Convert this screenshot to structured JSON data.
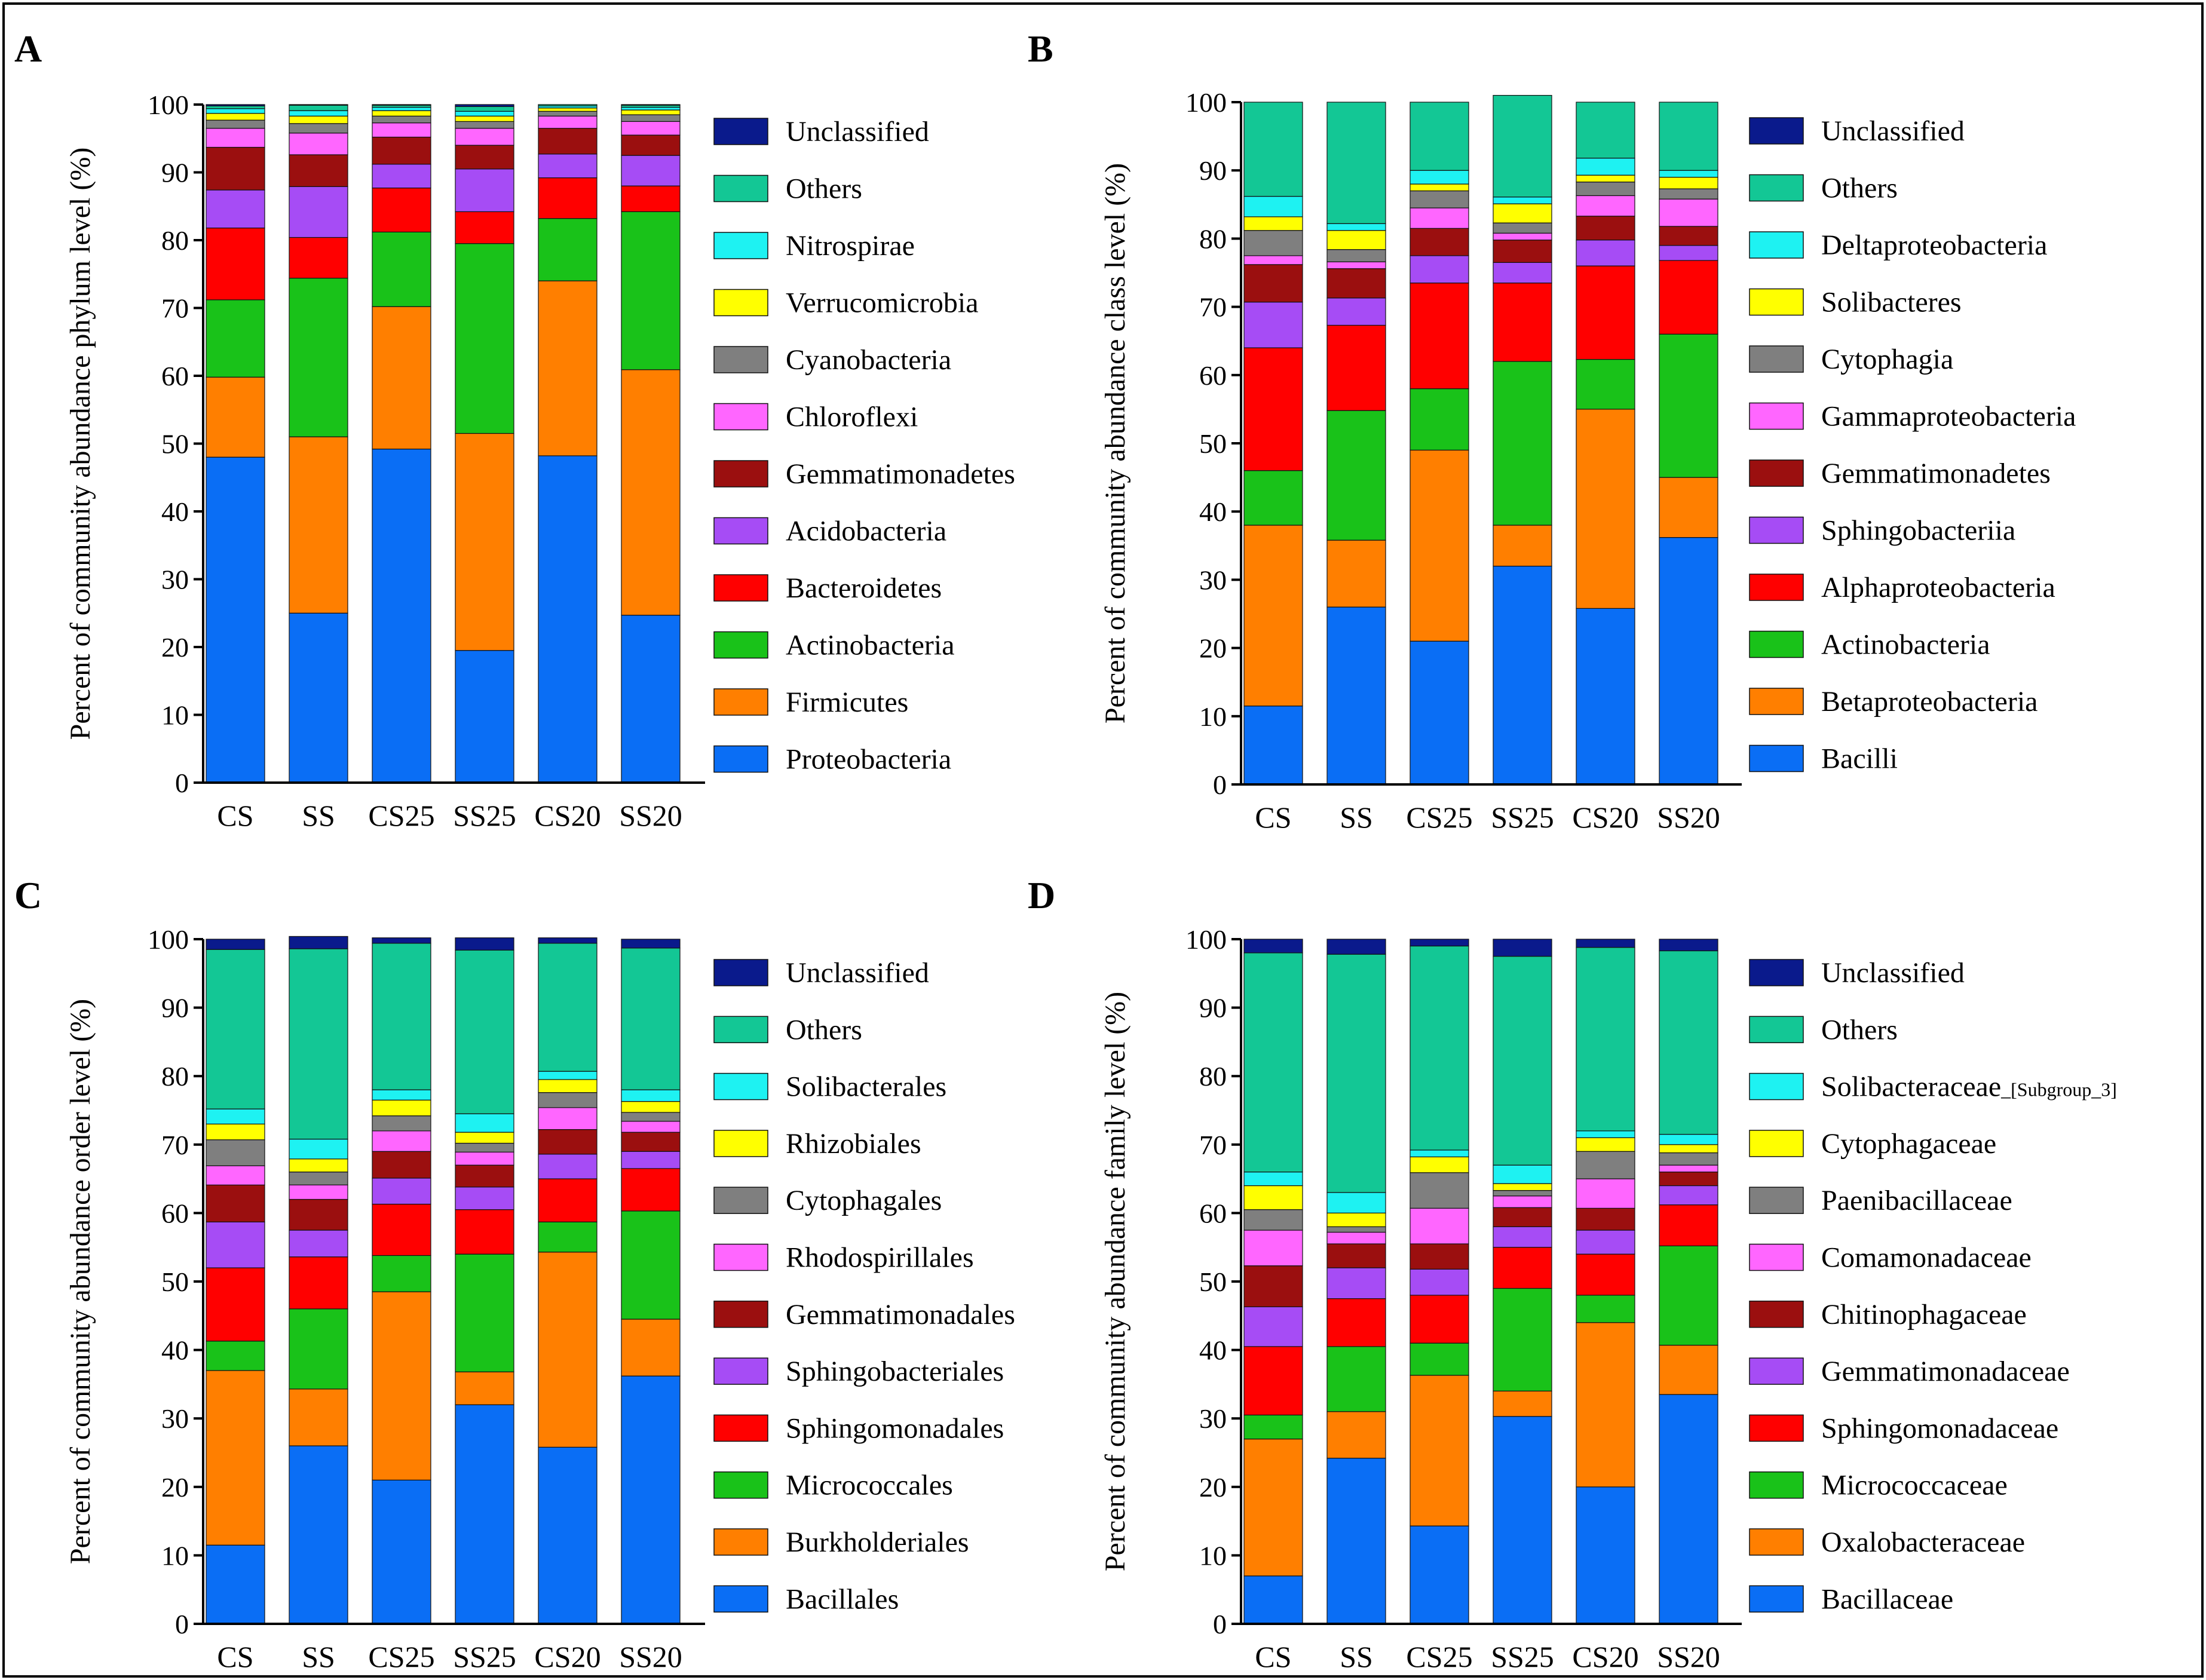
{
  "colors": {
    "Unclassified": "#0a1a8c",
    "Others": "#13c795",
    "Cyan": "#1ef2f2",
    "Yellow": "#ffff00",
    "Gray": "#7f7f7f",
    "Pink": "#ff66ff",
    "DarkRed": "#9b0f0f",
    "Purple": "#a64cf5",
    "Red": "#ff0000",
    "Green": "#19c219",
    "Orange": "#ff7f00",
    "Blue": "#0a6ef5"
  },
  "chart_data": [
    {
      "panel": "A",
      "type": "bar",
      "stacked": true,
      "title": "",
      "xlabel": "",
      "ylabel": "Percent of community abundance phylum level (%)",
      "ylim": [
        0,
        100
      ],
      "yticks": [
        "0",
        "10",
        "20",
        "30",
        "40",
        "50",
        "60",
        "70",
        "80",
        "90",
        "100"
      ],
      "categories": [
        "CS",
        "SS",
        "CS25",
        "SS25",
        "CS20",
        "SS20"
      ],
      "legend_position": "right",
      "series": [
        {
          "name": "Proteobacteria",
          "color_key": "Blue",
          "values": [
            48.0,
            25.0,
            49.2,
            19.5,
            48.2,
            24.7
          ]
        },
        {
          "name": "Firmicutes",
          "color_key": "Orange",
          "values": [
            11.8,
            26.0,
            21.0,
            32.0,
            25.8,
            36.2
          ]
        },
        {
          "name": "Actinobacteria",
          "color_key": "Green",
          "values": [
            11.4,
            23.4,
            11.0,
            28.0,
            9.2,
            23.3
          ]
        },
        {
          "name": "Bacteroidetes",
          "color_key": "Red",
          "values": [
            10.6,
            6.0,
            6.5,
            4.7,
            6.0,
            3.8
          ]
        },
        {
          "name": "Acidobacteria",
          "color_key": "Purple",
          "values": [
            5.6,
            7.5,
            3.5,
            6.3,
            3.5,
            4.5
          ]
        },
        {
          "name": "Gemmatimonadetes",
          "color_key": "DarkRed",
          "values": [
            6.3,
            4.7,
            4.0,
            3.5,
            3.8,
            3.0
          ]
        },
        {
          "name": "Chloroflexi",
          "color_key": "Pink",
          "values": [
            2.8,
            3.2,
            2.1,
            2.5,
            1.8,
            2.0
          ]
        },
        {
          "name": "Cyanobacteria",
          "color_key": "Gray",
          "values": [
            1.2,
            1.4,
            1.0,
            1.0,
            0.7,
            1.0
          ]
        },
        {
          "name": "Verrucomicrobia",
          "color_key": "Yellow",
          "values": [
            1.0,
            1.1,
            0.8,
            0.8,
            0.5,
            0.7
          ]
        },
        {
          "name": "Nitrospirae",
          "color_key": "Cyan",
          "values": [
            0.7,
            0.8,
            0.5,
            0.7,
            0.3,
            0.4
          ]
        },
        {
          "name": "Others",
          "color_key": "Others",
          "values": [
            0.4,
            0.8,
            0.3,
            0.7,
            0.2,
            0.3
          ]
        },
        {
          "name": "Unclassified",
          "color_key": "Unclassified",
          "values": [
            0.2,
            0.1,
            0.1,
            0.3,
            0.0,
            0.1
          ]
        }
      ]
    },
    {
      "panel": "B",
      "type": "bar",
      "stacked": true,
      "title": "",
      "xlabel": "",
      "ylabel": "Percent of community abundance class level (%)",
      "ylim": [
        0,
        100
      ],
      "yticks": [
        "0",
        "10",
        "20",
        "30",
        "40",
        "50",
        "60",
        "70",
        "80",
        "90",
        "100"
      ],
      "categories": [
        "CS",
        "SS",
        "CS25",
        "SS25",
        "CS20",
        "SS20"
      ],
      "legend_position": "right",
      "series": [
        {
          "name": "Bacilli",
          "color_key": "Blue",
          "values": [
            11.5,
            26.0,
            21.0,
            32.0,
            25.8,
            36.2
          ]
        },
        {
          "name": "Betaproteobacteria",
          "color_key": "Orange",
          "values": [
            26.5,
            9.8,
            28.0,
            6.0,
            29.2,
            8.8
          ]
        },
        {
          "name": "Actinobacteria",
          "color_key": "Green",
          "values": [
            8.0,
            19.0,
            9.0,
            24.0,
            7.3,
            21.0
          ]
        },
        {
          "name": "Alphaproteobacteria",
          "color_key": "Red",
          "values": [
            18.0,
            12.5,
            15.5,
            11.5,
            13.7,
            10.8
          ]
        },
        {
          "name": "Sphingobacteriia",
          "color_key": "Purple",
          "values": [
            6.7,
            4.0,
            4.0,
            3.0,
            3.8,
            2.2
          ]
        },
        {
          "name": "Gemmatimonadetes",
          "color_key": "DarkRed",
          "values": [
            5.5,
            4.3,
            4.0,
            3.3,
            3.5,
            2.8
          ]
        },
        {
          "name": "Gammaproteobacteria",
          "color_key": "Pink",
          "values": [
            1.3,
            1.0,
            3.0,
            1.0,
            3.0,
            4.0
          ]
        },
        {
          "name": "Cytophagia",
          "color_key": "Gray",
          "values": [
            3.7,
            1.8,
            2.5,
            1.5,
            2.0,
            1.5
          ]
        },
        {
          "name": "Solibacteres",
          "color_key": "Yellow",
          "values": [
            2.0,
            2.8,
            1.0,
            2.8,
            1.0,
            1.7
          ]
        },
        {
          "name": "Deltaproteobacteria",
          "color_key": "Cyan",
          "values": [
            3.0,
            1.0,
            2.0,
            1.0,
            2.5,
            1.0
          ]
        },
        {
          "name": "Others",
          "color_key": "Others",
          "values": [
            13.8,
            17.8,
            10.0,
            14.9,
            8.2,
            10.0
          ]
        },
        {
          "name": "Unclassified",
          "color_key": "Unclassified",
          "values": [
            0.0,
            0.0,
            0.0,
            0.0,
            0.0,
            0.0
          ]
        }
      ]
    },
    {
      "panel": "C",
      "type": "bar",
      "stacked": true,
      "title": "",
      "xlabel": "",
      "ylabel": "Percent of community abundance order level (%)",
      "ylim": [
        0,
        100
      ],
      "yticks": [
        "0",
        "10",
        "20",
        "30",
        "40",
        "50",
        "60",
        "70",
        "80",
        "90",
        "100"
      ],
      "categories": [
        "CS",
        "SS",
        "CS25",
        "SS25",
        "CS20",
        "SS20"
      ],
      "legend_position": "right",
      "series": [
        {
          "name": "Bacillales",
          "color_key": "Blue",
          "values": [
            11.5,
            26.0,
            21.0,
            32.0,
            25.8,
            36.2
          ]
        },
        {
          "name": "Burkholderiales",
          "color_key": "Orange",
          "values": [
            25.5,
            8.3,
            27.5,
            4.8,
            28.5,
            8.3
          ]
        },
        {
          "name": "Micrococcales",
          "color_key": "Green",
          "values": [
            4.3,
            11.7,
            5.3,
            17.2,
            4.4,
            15.8
          ]
        },
        {
          "name": "Sphingomonadales",
          "color_key": "Red",
          "values": [
            10.7,
            7.6,
            7.5,
            6.5,
            6.3,
            6.2
          ]
        },
        {
          "name": "Sphingobacteriales",
          "color_key": "Purple",
          "values": [
            6.7,
            3.9,
            3.8,
            3.3,
            3.6,
            2.5
          ]
        },
        {
          "name": "Gemmatimonadales",
          "color_key": "DarkRed",
          "values": [
            5.4,
            4.5,
            3.9,
            3.2,
            3.6,
            2.8
          ]
        },
        {
          "name": "Rhodospirillales",
          "color_key": "Pink",
          "values": [
            2.8,
            2.1,
            3.0,
            1.9,
            3.2,
            1.6
          ]
        },
        {
          "name": "Cytophagales",
          "color_key": "Gray",
          "values": [
            3.8,
            1.9,
            2.2,
            1.3,
            2.2,
            1.3
          ]
        },
        {
          "name": "Rhizobiales",
          "color_key": "Yellow",
          "values": [
            2.3,
            1.9,
            2.3,
            1.6,
            1.9,
            1.6
          ]
        },
        {
          "name": "Solibacterales",
          "color_key": "Cyan",
          "values": [
            2.2,
            2.9,
            1.5,
            2.7,
            1.2,
            1.7
          ]
        },
        {
          "name": "Others",
          "color_key": "Others",
          "values": [
            23.3,
            27.8,
            21.4,
            23.9,
            18.7,
            20.7
          ]
        },
        {
          "name": "Unclassified",
          "color_key": "Unclassified",
          "values": [
            1.5,
            1.8,
            0.8,
            1.8,
            0.8,
            1.3
          ]
        }
      ]
    },
    {
      "panel": "D",
      "type": "bar",
      "stacked": true,
      "title": "",
      "xlabel": "",
      "ylabel": "Percent of community abundance family level (%)",
      "ylim": [
        0,
        100
      ],
      "yticks": [
        "0",
        "10",
        "20",
        "30",
        "40",
        "50",
        "60",
        "70",
        "80",
        "90",
        "100"
      ],
      "categories": [
        "CS",
        "SS",
        "CS25",
        "SS25",
        "CS20",
        "SS20"
      ],
      "legend_position": "right",
      "series": [
        {
          "name": "Bacillaceae",
          "color_key": "Blue",
          "values": [
            7.0,
            24.2,
            14.3,
            30.3,
            20.0,
            33.5
          ]
        },
        {
          "name": "Oxalobacteraceae",
          "color_key": "Orange",
          "values": [
            20.0,
            6.8,
            22.0,
            3.7,
            24.0,
            7.2
          ]
        },
        {
          "name": "Micrococcaceae",
          "color_key": "Green",
          "values": [
            3.5,
            9.5,
            4.7,
            15.0,
            4.0,
            14.5
          ]
        },
        {
          "name": "Sphingomonadaceae",
          "color_key": "Red",
          "values": [
            10.0,
            7.0,
            7.0,
            6.0,
            6.0,
            6.0
          ]
        },
        {
          "name": "Gemmatimonadaceae",
          "color_key": "Purple",
          "values": [
            5.8,
            4.5,
            3.8,
            3.0,
            3.5,
            2.8
          ]
        },
        {
          "name": "Chitinophagaceae",
          "color_key": "DarkRed",
          "values": [
            6.0,
            3.5,
            3.7,
            2.8,
            3.2,
            2.0
          ]
        },
        {
          "name": "Comamonadaceae",
          "color_key": "Pink",
          "values": [
            5.2,
            1.7,
            5.2,
            1.7,
            4.3,
            1.0
          ]
        },
        {
          "name": "Paenibacillaceae",
          "color_key": "Gray",
          "values": [
            3.0,
            0.8,
            5.2,
            0.8,
            4.0,
            1.8
          ]
        },
        {
          "name": "Cytophagaceae",
          "color_key": "Yellow",
          "values": [
            3.5,
            2.0,
            2.3,
            1.0,
            2.0,
            1.2
          ]
        },
        {
          "name": "Solibacteraceae_[Subgroup_3]",
          "color_key": "Cyan",
          "values": [
            2.0,
            3.0,
            1.0,
            2.7,
            1.0,
            1.5
          ]
        },
        {
          "name": "Others",
          "color_key": "Others",
          "values": [
            32.0,
            34.8,
            29.8,
            30.5,
            26.8,
            26.8
          ]
        },
        {
          "name": "Unclassified",
          "color_key": "Unclassified",
          "values": [
            2.0,
            2.2,
            1.0,
            2.5,
            1.2,
            1.7
          ]
        }
      ]
    }
  ],
  "legend_labels": {
    "A": [
      {
        "text": "Unclassified",
        "sub": "",
        "color_key": "Unclassified"
      },
      {
        "text": "Others",
        "sub": "",
        "color_key": "Others"
      },
      {
        "text": "Nitrospirae",
        "sub": "",
        "color_key": "Cyan"
      },
      {
        "text": "Verrucomicrobia",
        "sub": "",
        "color_key": "Yellow"
      },
      {
        "text": "Cyanobacteria",
        "sub": "",
        "color_key": "Gray"
      },
      {
        "text": "Chloroflexi",
        "sub": "",
        "color_key": "Pink"
      },
      {
        "text": "Gemmatimonadetes",
        "sub": "",
        "color_key": "DarkRed"
      },
      {
        "text": "Acidobacteria",
        "sub": "",
        "color_key": "Purple"
      },
      {
        "text": "Bacteroidetes",
        "sub": "",
        "color_key": "Red"
      },
      {
        "text": "Actinobacteria",
        "sub": "",
        "color_key": "Green"
      },
      {
        "text": "Firmicutes",
        "sub": "",
        "color_key": "Orange"
      },
      {
        "text": "Proteobacteria",
        "sub": "",
        "color_key": "Blue"
      }
    ],
    "B": [
      {
        "text": "Unclassified",
        "sub": "",
        "color_key": "Unclassified"
      },
      {
        "text": "Others",
        "sub": "",
        "color_key": "Others"
      },
      {
        "text": "Deltaproteobacteria",
        "sub": "",
        "color_key": "Cyan"
      },
      {
        "text": "Solibacteres",
        "sub": "",
        "color_key": "Yellow"
      },
      {
        "text": "Cytophagia",
        "sub": "",
        "color_key": "Gray"
      },
      {
        "text": "Gammaproteobacteria",
        "sub": "",
        "color_key": "Pink"
      },
      {
        "text": "Gemmatimonadetes",
        "sub": "",
        "color_key": "DarkRed"
      },
      {
        "text": "Sphingobacteriia",
        "sub": "",
        "color_key": "Purple"
      },
      {
        "text": "Alphaproteobacteria",
        "sub": "",
        "color_key": "Red"
      },
      {
        "text": "Actinobacteria",
        "sub": "",
        "color_key": "Green"
      },
      {
        "text": "Betaproteobacteria",
        "sub": "",
        "color_key": "Orange"
      },
      {
        "text": "Bacilli",
        "sub": "",
        "color_key": "Blue"
      }
    ],
    "C": [
      {
        "text": "Unclassified",
        "sub": "",
        "color_key": "Unclassified"
      },
      {
        "text": "Others",
        "sub": "",
        "color_key": "Others"
      },
      {
        "text": "Solibacterales",
        "sub": "",
        "color_key": "Cyan"
      },
      {
        "text": "Rhizobiales",
        "sub": "",
        "color_key": "Yellow"
      },
      {
        "text": "Cytophagales",
        "sub": "",
        "color_key": "Gray"
      },
      {
        "text": "Rhodospirillales",
        "sub": "",
        "color_key": "Pink"
      },
      {
        "text": "Gemmatimonadales",
        "sub": "",
        "color_key": "DarkRed"
      },
      {
        "text": "Sphingobacteriales",
        "sub": "",
        "color_key": "Purple"
      },
      {
        "text": "Sphingomonadales",
        "sub": "",
        "color_key": "Red"
      },
      {
        "text": "Micrococcales",
        "sub": "",
        "color_key": "Green"
      },
      {
        "text": "Burkholderiales",
        "sub": "",
        "color_key": "Orange"
      },
      {
        "text": "Bacillales",
        "sub": "",
        "color_key": "Blue"
      }
    ],
    "D": [
      {
        "text": "Unclassified",
        "sub": "",
        "color_key": "Unclassified"
      },
      {
        "text": "Others",
        "sub": "",
        "color_key": "Others"
      },
      {
        "text": "Solibacteraceae",
        "sub": "_[Subgroup_3]",
        "color_key": "Cyan"
      },
      {
        "text": "Cytophagaceae",
        "sub": "",
        "color_key": "Yellow"
      },
      {
        "text": "Paenibacillaceae",
        "sub": "",
        "color_key": "Gray"
      },
      {
        "text": "Comamonadaceae",
        "sub": "",
        "color_key": "Pink"
      },
      {
        "text": "Chitinophagaceae",
        "sub": "",
        "color_key": "DarkRed"
      },
      {
        "text": "Gemmatimonadaceae",
        "sub": "",
        "color_key": "Purple"
      },
      {
        "text": "Sphingomonadaceae",
        "sub": "",
        "color_key": "Red"
      },
      {
        "text": "Micrococcaceae",
        "sub": "",
        "color_key": "Green"
      },
      {
        "text": "Oxalobacteraceae",
        "sub": "",
        "color_key": "Orange"
      },
      {
        "text": "Bacillaceae",
        "sub": "",
        "color_key": "Blue"
      }
    ]
  }
}
